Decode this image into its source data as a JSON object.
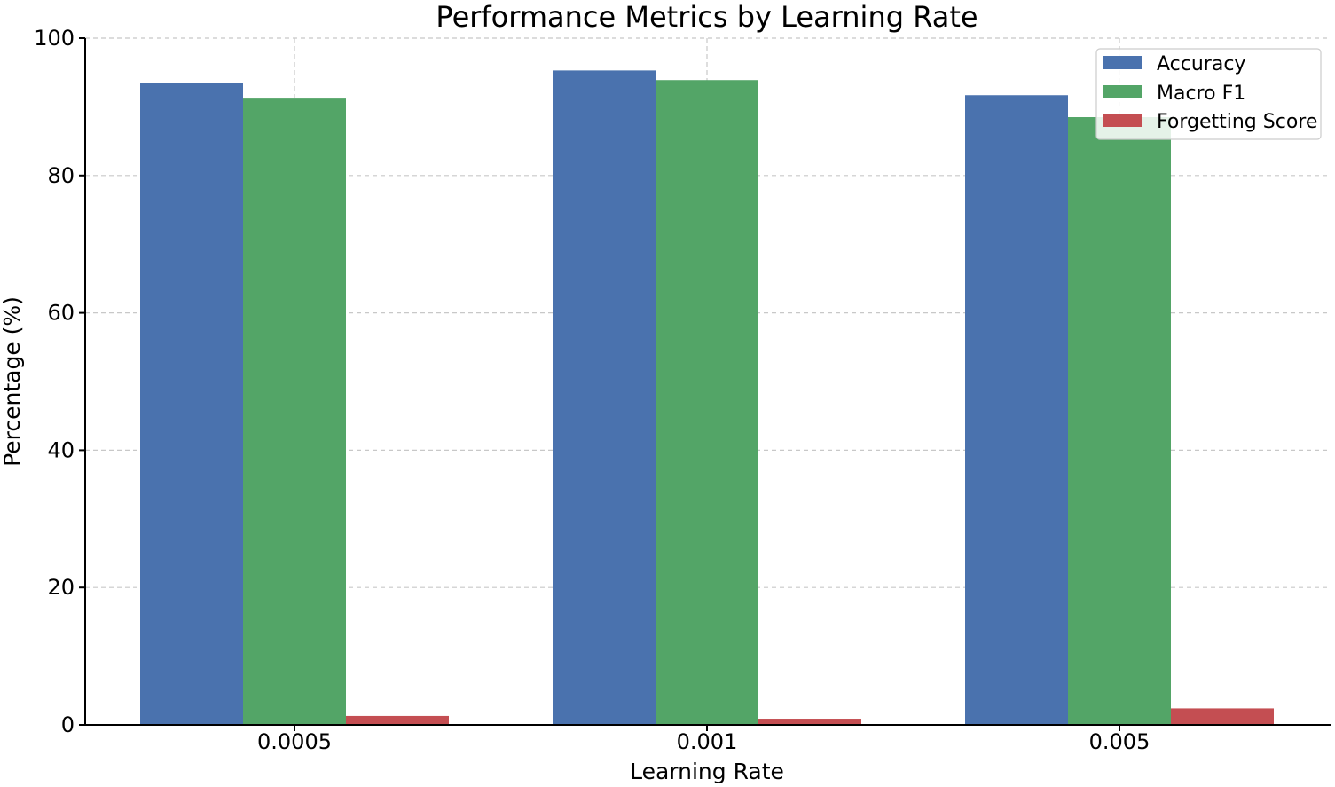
{
  "chart_data": {
    "type": "bar",
    "title": "Performance Metrics by Learning Rate",
    "xlabel": "Learning Rate",
    "ylabel": "Percentage (%)",
    "categories": [
      "0.0005",
      "0.001",
      "0.005"
    ],
    "ylim": [
      0,
      100
    ],
    "yticks": [
      0,
      20,
      40,
      60,
      80,
      100
    ],
    "grid": true,
    "legend_position": "top-right",
    "series": [
      {
        "name": "Accuracy",
        "color": "#4a72ae",
        "values": [
          93.5,
          95.3,
          91.7
        ]
      },
      {
        "name": "Macro F1",
        "color": "#53a567",
        "values": [
          91.2,
          93.9,
          88.5
        ]
      },
      {
        "name": "Forgetting Score",
        "color": "#c44e52",
        "values": [
          1.3,
          0.9,
          2.4
        ]
      }
    ]
  }
}
